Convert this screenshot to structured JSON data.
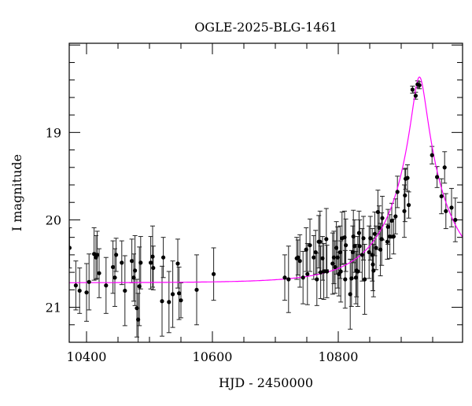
{
  "chart_data": {
    "type": "scatter",
    "title": "OGLE-2025-BLG-1461",
    "xlabel": "HJD - 2450000",
    "ylabel": "I magnitude",
    "xlim": [
      10372.5,
      10997.5
    ],
    "ylim": [
      21.4,
      17.98
    ],
    "y_inverted": true,
    "xticks": [
      10400,
      10600,
      10800
    ],
    "yticks": [
      19,
      20,
      21
    ],
    "grid": false,
    "colors": {
      "points": "#000000",
      "model": "#ff00ff"
    },
    "model": {
      "type": "point-lens fit",
      "t0": 10929,
      "u0": 0.115,
      "tE": 94,
      "baseline_mag": 20.72
    },
    "points": [
      [
        10373,
        20.32,
        0.23
      ],
      [
        10383,
        20.75,
        0.28
      ],
      [
        10389,
        20.81,
        0.26
      ],
      [
        10400,
        20.83,
        0.33
      ],
      [
        10404,
        20.71,
        0.32
      ],
      [
        10412,
        20.39,
        0.3
      ],
      [
        10415,
        20.43,
        0.25
      ],
      [
        10417,
        20.4,
        0.27
      ],
      [
        10420,
        20.61,
        0.28
      ],
      [
        10431,
        20.75,
        0.32
      ],
      [
        10442,
        20.54,
        0.3
      ],
      [
        10445,
        20.66,
        0.33
      ],
      [
        10447,
        20.4,
        0.19
      ],
      [
        10456,
        20.49,
        0.25
      ],
      [
        10461,
        20.81,
        0.4
      ],
      [
        10472,
        20.47,
        0.25
      ],
      [
        10475,
        20.66,
        0.27
      ],
      [
        10477,
        20.58,
        0.4
      ],
      [
        10480,
        21.01,
        0.33
      ],
      [
        10482,
        21.14,
        0.3
      ],
      [
        10484,
        20.76,
        0.45
      ],
      [
        10486,
        20.49,
        0.3
      ],
      [
        10502,
        20.49,
        0.3
      ],
      [
        10505,
        20.42,
        0.35
      ],
      [
        10506,
        20.55,
        0.25
      ],
      [
        10520,
        20.93,
        0.4
      ],
      [
        10522,
        20.43,
        0.23
      ],
      [
        10531,
        20.94,
        0.35
      ],
      [
        10537,
        20.85,
        0.38
      ],
      [
        10545,
        20.5,
        0.28
      ],
      [
        10547,
        20.84,
        0.3
      ],
      [
        10550,
        20.92,
        0.2
      ],
      [
        10575,
        20.8,
        0.4
      ],
      [
        10602,
        20.62,
        0.3
      ],
      [
        10715,
        20.66,
        0.26
      ],
      [
        10721,
        20.68,
        0.38
      ],
      [
        10734,
        20.44,
        0.24
      ],
      [
        10736,
        20.43,
        0.2
      ],
      [
        10739,
        20.47,
        0.3
      ],
      [
        10744,
        20.66,
        0.3
      ],
      [
        10749,
        20.34,
        0.25
      ],
      [
        10751,
        20.62,
        0.35
      ],
      [
        10755,
        20.29,
        0.3
      ],
      [
        10761,
        20.43,
        0.25
      ],
      [
        10764,
        20.37,
        0.25
      ],
      [
        10766,
        20.68,
        0.3
      ],
      [
        10769,
        20.25,
        0.3
      ],
      [
        10771,
        20.25,
        0.35
      ],
      [
        10772,
        20.6,
        0.3
      ],
      [
        10775,
        20.44,
        0.25
      ],
      [
        10777,
        20.59,
        0.32
      ],
      [
        10781,
        20.22,
        0.35
      ],
      [
        10782,
        20.59,
        0.3
      ],
      [
        10791,
        20.5,
        0.35
      ],
      [
        10793,
        20.43,
        0.3
      ],
      [
        10795,
        20.54,
        0.3
      ],
      [
        10797,
        20.32,
        0.3
      ],
      [
        10799,
        20.43,
        0.35
      ],
      [
        10801,
        20.62,
        0.25
      ],
      [
        10803,
        20.37,
        0.3
      ],
      [
        10804,
        20.59,
        0.35
      ],
      [
        10806,
        20.21,
        0.3
      ],
      [
        10810,
        20.2,
        0.3
      ],
      [
        10811,
        20.68,
        0.33
      ],
      [
        10812,
        20.29,
        0.3
      ],
      [
        10819,
        20.85,
        0.4
      ],
      [
        10821,
        20.67,
        0.32
      ],
      [
        10823,
        20.37,
        0.3
      ],
      [
        10824,
        20.19,
        0.3
      ],
      [
        10826,
        20.3,
        0.3
      ],
      [
        10828,
        20.66,
        0.3
      ],
      [
        10829,
        20.58,
        0.3
      ],
      [
        10831,
        20.59,
        0.4
      ],
      [
        10833,
        20.15,
        0.25
      ],
      [
        10834,
        20.3,
        0.3
      ],
      [
        10838,
        20.4,
        0.3
      ],
      [
        10840,
        20.21,
        0.25
      ],
      [
        10842,
        20.68,
        0.4
      ],
      [
        10849,
        20.37,
        0.3
      ],
      [
        10851,
        20.21,
        0.25
      ],
      [
        10854,
        20.4,
        0.3
      ],
      [
        10855,
        20.51,
        0.3
      ],
      [
        10856,
        20.58,
        0.3
      ],
      [
        10858,
        20.16,
        0.25
      ],
      [
        10860,
        20.32,
        0.25
      ],
      [
        10863,
        19.91,
        0.25
      ],
      [
        10865,
        20.09,
        0.25
      ],
      [
        10867,
        20.34,
        0.3
      ],
      [
        10869,
        20.22,
        0.3
      ],
      [
        10870,
        19.98,
        0.25
      ],
      [
        10878,
        20.25,
        0.2
      ],
      [
        10879,
        20.08,
        0.2
      ],
      [
        10882,
        20.19,
        0.25
      ],
      [
        10885,
        20.01,
        0.2
      ],
      [
        10888,
        20.19,
        0.2
      ],
      [
        10891,
        19.96,
        0.2
      ],
      [
        10894,
        19.68,
        0.18
      ],
      [
        10905,
        19.9,
        0.3
      ],
      [
        10906,
        19.72,
        0.3
      ],
      [
        10907,
        19.53,
        0.12
      ],
      [
        10910,
        19.52,
        0.15
      ],
      [
        10912,
        19.83,
        0.15
      ],
      [
        10918,
        18.51,
        0.04
      ],
      [
        10923,
        18.58,
        0.04
      ],
      [
        10926,
        18.45,
        0.04
      ],
      [
        10929,
        18.46,
        0.04
      ],
      [
        10949,
        19.26,
        0.1
      ],
      [
        10957,
        19.51,
        0.12
      ],
      [
        10964,
        19.73,
        0.2
      ],
      [
        10969,
        19.4,
        0.18
      ],
      [
        10971,
        19.9,
        0.2
      ],
      [
        10980,
        19.86,
        0.22
      ],
      [
        10986,
        20.0,
        0.25
      ]
    ]
  }
}
